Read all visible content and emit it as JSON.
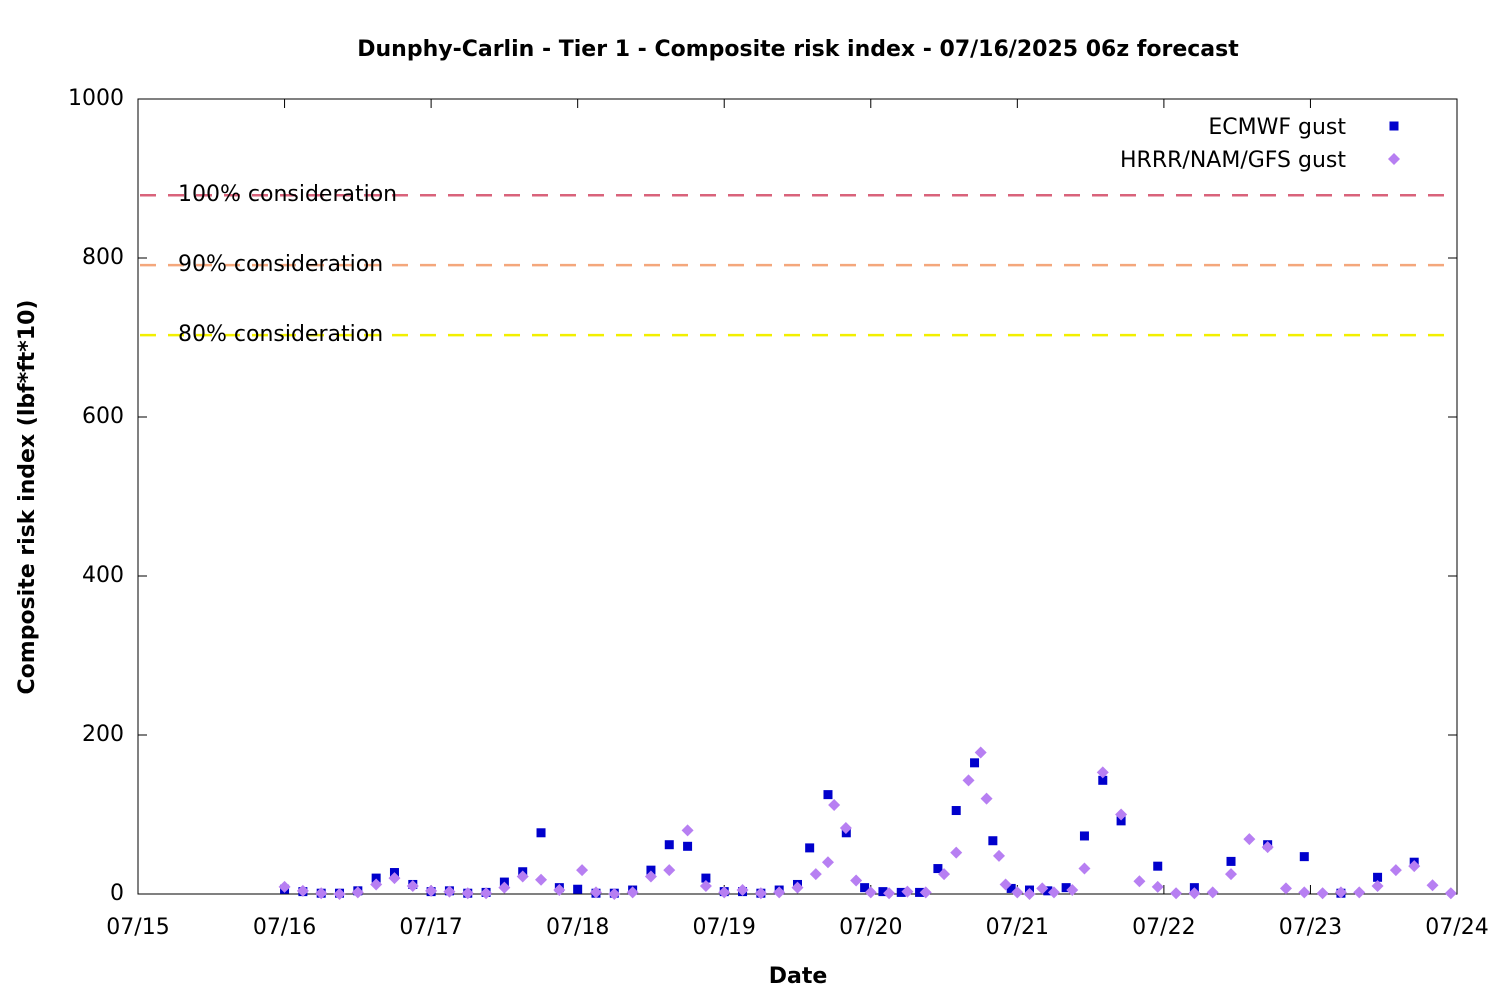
{
  "chart_data": {
    "type": "scatter",
    "title": "Dunphy-Carlin - Tier 1 - Composite risk index - 07/16/2025 06z forecast",
    "x_label": "Date",
    "y_label": "Composite risk index (lbf*ft*10)",
    "xlim": [
      0,
      9
    ],
    "xticks": [
      {
        "value": 0,
        "label": "07/15"
      },
      {
        "value": 1,
        "label": "07/16"
      },
      {
        "value": 2,
        "label": "07/17"
      },
      {
        "value": 3,
        "label": "07/18"
      },
      {
        "value": 4,
        "label": "07/19"
      },
      {
        "value": 5,
        "label": "07/20"
      },
      {
        "value": 6,
        "label": "07/21"
      },
      {
        "value": 7,
        "label": "07/22"
      },
      {
        "value": 8,
        "label": "07/23"
      },
      {
        "value": 9,
        "label": "07/24"
      }
    ],
    "ylim": [
      0,
      1000
    ],
    "yticks": [
      0,
      200,
      400,
      600,
      800,
      1000
    ],
    "legend": "top-right",
    "thresholds": [
      {
        "label": "100% consideration",
        "value": 879,
        "color": "#d9637b"
      },
      {
        "label": "90% consideration",
        "value": 791,
        "color": "#f4a77c"
      },
      {
        "label": "80% consideration",
        "value": 703,
        "color": "#f2ef00"
      }
    ],
    "series": [
      {
        "name": "ECMWF gust",
        "color": "#0000cc",
        "marker": "square",
        "x": [
          1.0,
          1.125,
          1.25,
          1.375,
          1.5,
          1.625,
          1.75,
          1.875,
          2.0,
          2.125,
          2.25,
          2.375,
          2.5,
          2.625,
          2.75,
          2.875,
          3.0,
          3.125,
          3.25,
          3.375,
          3.5,
          3.625,
          3.75,
          3.875,
          4.0,
          4.125,
          4.25,
          4.375,
          4.5,
          4.583,
          4.708,
          4.833,
          4.958,
          5.083,
          5.208,
          5.333,
          5.458,
          5.583,
          5.708,
          5.833,
          5.958,
          6.083,
          6.208,
          6.333,
          6.458,
          6.583,
          6.708,
          6.958,
          7.208,
          7.458,
          7.708,
          7.958,
          8.208,
          8.458,
          8.708
        ],
        "values": [
          6,
          3,
          1,
          1,
          4,
          20,
          27,
          12,
          3,
          4,
          1,
          2,
          15,
          28,
          77,
          8,
          6,
          1,
          1,
          5,
          30,
          62,
          60,
          20,
          3,
          3,
          1,
          5,
          12,
          58,
          125,
          77,
          8,
          3,
          2,
          2,
          32,
          105,
          165,
          67,
          7,
          5,
          4,
          8,
          73,
          143,
          92,
          35,
          8,
          41,
          62,
          47,
          1,
          21,
          40
        ]
      },
      {
        "name": "HRRR/NAM/GFS gust",
        "color": "#b77ff2",
        "marker": "diamond",
        "x": [
          1.0,
          1.125,
          1.25,
          1.375,
          1.5,
          1.625,
          1.75,
          1.875,
          2.0,
          2.125,
          2.25,
          2.375,
          2.5,
          2.625,
          2.75,
          2.875,
          3.03,
          3.125,
          3.25,
          3.375,
          3.5,
          3.625,
          3.75,
          3.875,
          4.0,
          4.125,
          4.25,
          4.375,
          4.5,
          4.625,
          4.708,
          4.75,
          4.83,
          4.9,
          5.0,
          5.125,
          5.25,
          5.375,
          5.5,
          5.583,
          5.667,
          5.75,
          5.79,
          5.875,
          5.92,
          6.0,
          6.083,
          6.17,
          6.25,
          6.375,
          6.458,
          6.583,
          6.708,
          6.833,
          6.958,
          7.083,
          7.208,
          7.333,
          7.458,
          7.583,
          7.708,
          7.833,
          7.958,
          8.083,
          8.208,
          8.333,
          8.458,
          8.583,
          8.708,
          8.833,
          8.958
        ],
        "values": [
          9,
          4,
          1,
          0,
          2,
          12,
          20,
          10,
          4,
          3,
          1,
          1,
          8,
          22,
          18,
          5,
          30,
          2,
          0,
          2,
          22,
          30,
          80,
          10,
          2,
          5,
          1,
          2,
          8,
          25,
          40,
          112,
          83,
          17,
          2,
          1,
          3,
          2,
          25,
          52,
          143,
          178,
          120,
          48,
          12,
          2,
          0,
          7,
          2,
          5,
          32,
          153,
          100,
          16,
          9,
          1,
          1,
          2,
          25,
          69,
          59,
          7,
          2,
          1,
          2,
          2,
          10,
          30,
          35,
          11,
          1
        ]
      }
    ]
  }
}
